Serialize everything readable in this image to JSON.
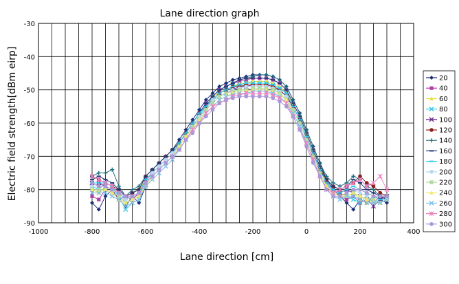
{
  "chart_data": {
    "type": "line",
    "title": "Lane direction graph",
    "xlabel": "Lane direction [cm]",
    "ylabel": "Electric field strength[dBm eirp]",
    "xlim": [
      -1000,
      400
    ],
    "ylim": [
      -90,
      -30
    ],
    "xticks": [
      -1000,
      -800,
      -600,
      -400,
      -200,
      0,
      200,
      400
    ],
    "yticks": [
      -90,
      -80,
      -70,
      -60,
      -50,
      -40,
      -30
    ],
    "x_minor_step": 50,
    "grid": true,
    "legend_position": "right",
    "x": [
      -800,
      -775,
      -750,
      -725,
      -700,
      -675,
      -650,
      -625,
      -600,
      -575,
      -550,
      -525,
      -500,
      -475,
      -450,
      -425,
      -400,
      -375,
      -350,
      -325,
      -300,
      -275,
      -250,
      -225,
      -200,
      -175,
      -150,
      -125,
      -100,
      -75,
      -50,
      -25,
      0,
      25,
      50,
      75,
      100,
      125,
      150,
      175,
      200,
      225,
      250,
      275,
      300
    ],
    "series": [
      {
        "name": "20",
        "color": "#1a2e7a",
        "marker": "diamond",
        "values": [
          -84,
          -86,
          -82,
          -80,
          -83,
          -85,
          -82,
          -84,
          -79,
          -74,
          -72,
          -70,
          -68,
          -65,
          -62,
          -59,
          -56,
          -53,
          -51,
          -49,
          -48,
          -47,
          -46.5,
          -46,
          -45.5,
          -45.5,
          -45.5,
          -46,
          -47,
          -49,
          -53,
          -57,
          -62,
          -67,
          -72,
          -77,
          -80,
          -82,
          -84,
          -86,
          -83,
          -84,
          -82,
          -83,
          -84
        ]
      },
      {
        "name": "40",
        "color": "#b040a8",
        "marker": "square",
        "values": [
          -82,
          -83,
          -80,
          -81,
          -82,
          -84,
          -83,
          -82,
          -78,
          -75,
          -73,
          -71,
          -69,
          -66,
          -63,
          -60,
          -57,
          -54,
          -52,
          -50,
          -49,
          -48,
          -47.5,
          -47,
          -46.5,
          -46.5,
          -46.5,
          -47,
          -48,
          -50,
          -54,
          -58,
          -63,
          -68,
          -73,
          -78,
          -81,
          -82,
          -83,
          -82,
          -84,
          -83,
          -84,
          -82,
          -83
        ]
      },
      {
        "name": "60",
        "color": "#e8e030",
        "marker": "triangle",
        "values": [
          -80,
          -81,
          -79,
          -80,
          -81,
          -82,
          -81,
          -80,
          -77,
          -75,
          -73,
          -71,
          -69,
          -66,
          -63,
          -60,
          -57,
          -55,
          -52,
          -51,
          -50,
          -49,
          -48,
          -48,
          -47.5,
          -47.5,
          -47.5,
          -48,
          -49,
          -51,
          -54,
          -58,
          -63,
          -68,
          -73,
          -78,
          -80,
          -81,
          -82,
          -81,
          -83,
          -84,
          -83,
          -82,
          -82
        ]
      },
      {
        "name": "80",
        "color": "#40c8e0",
        "marker": "x",
        "values": [
          -79,
          -80,
          -78,
          -79,
          -82,
          -86,
          -84,
          -83,
          -78,
          -75,
          -73,
          -71,
          -69,
          -67,
          -64,
          -61,
          -58,
          -55,
          -53,
          -51,
          -50,
          -49,
          -48.5,
          -48,
          -48,
          -48,
          -48,
          -48.5,
          -49.5,
          -51,
          -55,
          -59,
          -64,
          -69,
          -74,
          -78,
          -81,
          -82,
          -82,
          -83,
          -84,
          -82,
          -84,
          -83,
          -82
        ]
      },
      {
        "name": "100",
        "color": "#6a2a8a",
        "marker": "x",
        "values": [
          -78,
          -78,
          -79,
          -80,
          -83,
          -82,
          -83,
          -81,
          -77,
          -75,
          -73,
          -71,
          -69,
          -67,
          -64,
          -61,
          -58,
          -56,
          -53,
          -52,
          -51,
          -50,
          -49,
          -49,
          -48.5,
          -48.5,
          -48.5,
          -49,
          -50,
          -52,
          -55,
          -59,
          -64,
          -69,
          -74,
          -78,
          -80,
          -81,
          -80,
          -81,
          -82,
          -83,
          -85,
          -83,
          -82
        ]
      },
      {
        "name": "120",
        "color": "#8a2020",
        "marker": "circle",
        "values": [
          -76,
          -77,
          -78,
          -79,
          -80,
          -82,
          -81,
          -80,
          -76,
          -74,
          -72,
          -70,
          -68,
          -66,
          -63,
          -60,
          -57,
          -55,
          -53,
          -51,
          -50,
          -49,
          -49,
          -48.5,
          -48.5,
          -48.5,
          -48.5,
          -49,
          -50,
          -52,
          -55,
          -59,
          -64,
          -69,
          -74,
          -77,
          -79,
          -80,
          -79,
          -78,
          -76,
          -78,
          -79,
          -81,
          -82
        ]
      },
      {
        "name": "140",
        "color": "#207080",
        "marker": "plus",
        "values": [
          -76,
          -75,
          -75,
          -74,
          -79,
          -82,
          -80,
          -79,
          -76,
          -74,
          -72,
          -70,
          -68,
          -66,
          -63,
          -60,
          -57,
          -55,
          -52,
          -50,
          -49,
          -48,
          -47,
          -46.5,
          -46,
          -45.5,
          -45.5,
          -46,
          -47,
          -49,
          -53,
          -57,
          -62,
          -67,
          -72,
          -76,
          -78,
          -79,
          -78,
          -76,
          -77,
          -79,
          -80,
          -82,
          -82
        ]
      },
      {
        "name": "160",
        "color": "#203878",
        "marker": "dash",
        "values": [
          -77,
          -76,
          -77,
          -78,
          -80,
          -82,
          -81,
          -80,
          -76,
          -74,
          -72,
          -70,
          -68,
          -66,
          -63,
          -60,
          -57,
          -54,
          -52,
          -50,
          -49,
          -48,
          -47,
          -46.5,
          -46.5,
          -46.5,
          -46.5,
          -47,
          -48,
          -50,
          -54,
          -58,
          -63,
          -68,
          -73,
          -77,
          -79,
          -80,
          -79,
          -77,
          -78,
          -80,
          -81,
          -82,
          -83
        ]
      },
      {
        "name": "180",
        "color": "#30c0e8",
        "marker": "dash",
        "values": [
          -78,
          -78,
          -78,
          -79,
          -81,
          -83,
          -82,
          -81,
          -77,
          -75,
          -73,
          -71,
          -69,
          -66,
          -63,
          -60,
          -57,
          -55,
          -53,
          -51,
          -50,
          -49,
          -48.5,
          -48,
          -48,
          -48,
          -48,
          -48.5,
          -49.5,
          -51,
          -55,
          -59,
          -64,
          -69,
          -74,
          -78,
          -80,
          -81,
          -80,
          -79,
          -80,
          -81,
          -82,
          -83,
          -83
        ]
      },
      {
        "name": "200",
        "color": "#b8d8f0",
        "marker": "circle",
        "values": [
          -79,
          -79,
          -79,
          -80,
          -82,
          -83,
          -82,
          -81,
          -78,
          -75,
          -73,
          -71,
          -69,
          -67,
          -64,
          -61,
          -58,
          -56,
          -53,
          -52,
          -51,
          -50,
          -49.5,
          -49,
          -49,
          -49,
          -49,
          -49.5,
          -50.5,
          -52,
          -56,
          -60,
          -65,
          -70,
          -75,
          -79,
          -81,
          -82,
          -81,
          -80,
          -81,
          -82,
          -83,
          -84,
          -83
        ]
      },
      {
        "name": "220",
        "color": "#b0d8a0",
        "marker": "square",
        "values": [
          -80,
          -80,
          -80,
          -81,
          -82,
          -84,
          -83,
          -82,
          -78,
          -76,
          -74,
          -72,
          -70,
          -67,
          -64,
          -61,
          -59,
          -56,
          -54,
          -52,
          -51,
          -50.5,
          -50,
          -50,
          -49.5,
          -49.5,
          -49.5,
          -50,
          -51,
          -53,
          -56,
          -60,
          -65,
          -70,
          -75,
          -79,
          -81,
          -82,
          -82,
          -81,
          -82,
          -83,
          -83,
          -84,
          -83
        ]
      },
      {
        "name": "240",
        "color": "#f0e870",
        "marker": "triangle",
        "values": [
          -80,
          -81,
          -80,
          -81,
          -83,
          -84,
          -83,
          -82,
          -79,
          -76,
          -74,
          -72,
          -70,
          -67,
          -64,
          -62,
          -59,
          -57,
          -55,
          -53,
          -52,
          -51,
          -50.5,
          -50.5,
          -50,
          -50,
          -50,
          -50.5,
          -51.5,
          -53,
          -57,
          -61,
          -66,
          -71,
          -76,
          -79,
          -81,
          -82,
          -82,
          -81,
          -82,
          -83,
          -84,
          -84,
          -83
        ]
      },
      {
        "name": "260",
        "color": "#80c0e8",
        "marker": "x",
        "values": [
          -81,
          -81,
          -81,
          -82,
          -83,
          -85,
          -84,
          -83,
          -79,
          -77,
          -75,
          -73,
          -71,
          -68,
          -65,
          -62,
          -60,
          -57,
          -55,
          -53,
          -52,
          -51.5,
          -51,
          -51,
          -50.5,
          -50.5,
          -50.5,
          -51,
          -52,
          -54,
          -57,
          -61,
          -66,
          -71,
          -76,
          -80,
          -82,
          -83,
          -82,
          -82,
          -83,
          -84,
          -84,
          -84,
          -83
        ]
      },
      {
        "name": "280",
        "color": "#f080c0",
        "marker": "star",
        "values": [
          -76,
          -77,
          -78,
          -79,
          -81,
          -82,
          -82,
          -81,
          -78,
          -76,
          -74,
          -72,
          -70,
          -68,
          -65,
          -62,
          -60,
          -57,
          -55,
          -54,
          -53,
          -52,
          -51.5,
          -51,
          -51,
          -51,
          -51,
          -51.5,
          -52.5,
          -54,
          -58,
          -62,
          -66,
          -71,
          -76,
          -80,
          -81,
          -80,
          -79,
          -78,
          -77,
          -79,
          -78,
          -76,
          -80
        ]
      },
      {
        "name": "300",
        "color": "#a898d8",
        "marker": "circle",
        "values": [
          -78,
          -79,
          -79,
          -80,
          -81,
          -82,
          -82,
          -81,
          -78,
          -76,
          -74,
          -72,
          -70,
          -68,
          -65,
          -63,
          -60,
          -58,
          -56,
          -54,
          -53,
          -52.5,
          -52,
          -52,
          -52,
          -52,
          -52,
          -52.5,
          -53.5,
          -55,
          -58,
          -62,
          -67,
          -72,
          -76,
          -80,
          -82,
          -82,
          -81,
          -80,
          -80,
          -81,
          -82,
          -82,
          -82
        ]
      }
    ]
  }
}
